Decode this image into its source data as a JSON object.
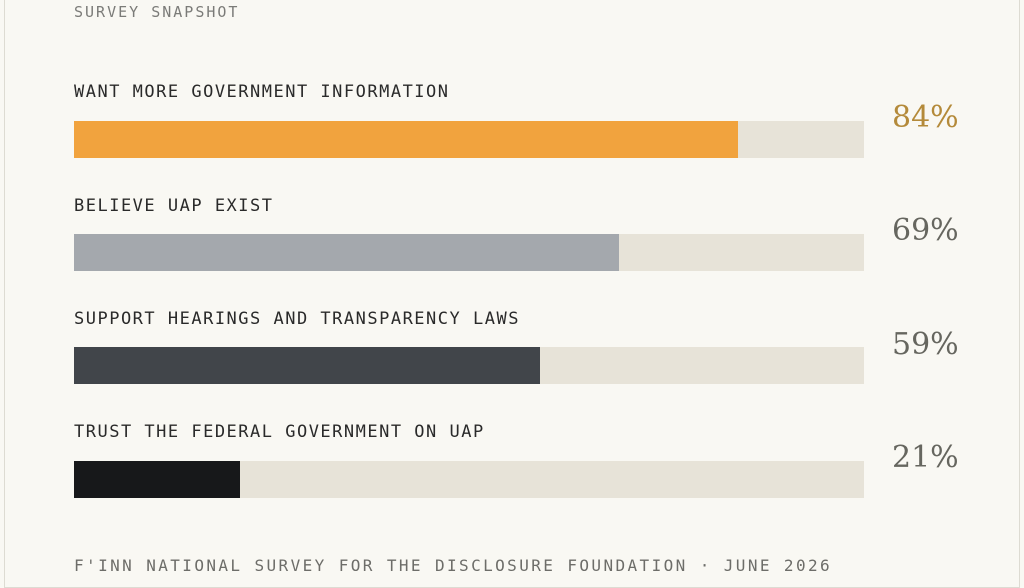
{
  "eyebrow": "SURVEY SNAPSHOT",
  "chart_data": {
    "type": "bar",
    "orientation": "horizontal",
    "categories": [
      "WANT MORE GOVERNMENT INFORMATION",
      "BELIEVE UAP EXIST",
      "SUPPORT HEARINGS AND TRANSPARENCY LAWS",
      "TRUST THE FEDERAL GOVERNMENT ON UAP"
    ],
    "values": [
      84,
      69,
      59,
      21
    ],
    "value_labels": [
      "84%",
      "69%",
      "59%",
      "21%"
    ],
    "xlim": [
      0,
      100
    ],
    "colors": [
      "#f1a33e",
      "#a4a8ad",
      "#41454a",
      "#17181a"
    ],
    "track_color": "#e7e3d8"
  },
  "footer": "F'INN NATIONAL SURVEY FOR THE DISCLOSURE FOUNDATION · JUNE 2026"
}
